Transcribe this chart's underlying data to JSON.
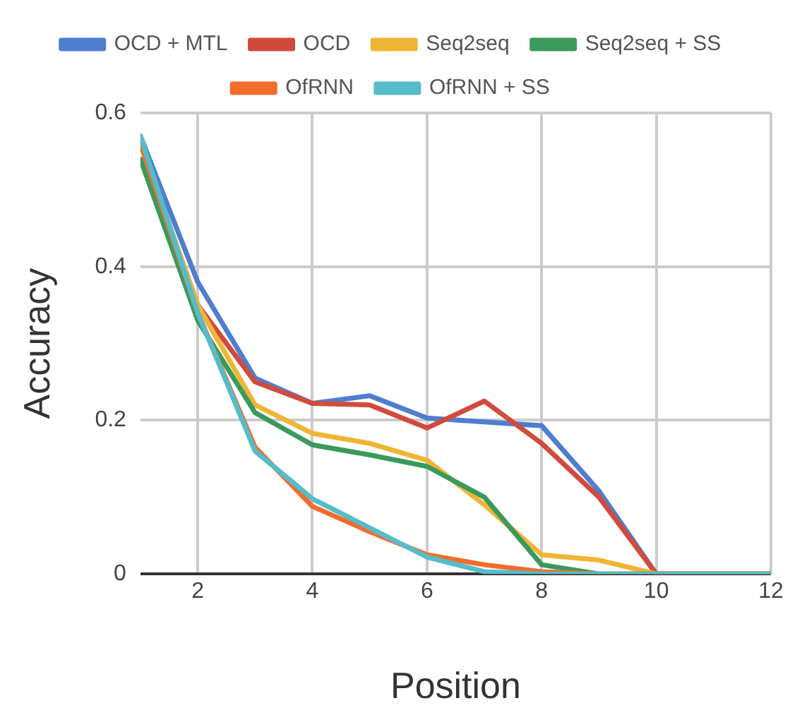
{
  "chart_data": {
    "type": "line",
    "xlabel": "Position",
    "ylabel": "Accuracy",
    "x": [
      1,
      2,
      3,
      4,
      5,
      6,
      7,
      8,
      9,
      10,
      11,
      12
    ],
    "series": [
      {
        "name": "OCD + MTL",
        "color": "#4f7ecf",
        "values": [
          0.57,
          0.38,
          0.255,
          0.222,
          0.232,
          0.203,
          0.198,
          0.193,
          0.108,
          0,
          0,
          0
        ]
      },
      {
        "name": "OCD",
        "color": "#d14b3d",
        "values": [
          0.56,
          0.35,
          0.25,
          0.222,
          0.22,
          0.19,
          0.225,
          0.17,
          0.1,
          0,
          0,
          0
        ]
      },
      {
        "name": "Seq2seq",
        "color": "#f0b536",
        "values": [
          0.56,
          0.35,
          0.22,
          0.183,
          0.17,
          0.148,
          0.09,
          0.025,
          0.018,
          0,
          0,
          0
        ]
      },
      {
        "name": "Seq2seq + SS",
        "color": "#3a9a5b",
        "values": [
          0.54,
          0.33,
          0.21,
          0.168,
          0.155,
          0.14,
          0.1,
          0.012,
          0,
          0,
          0,
          0
        ]
      },
      {
        "name": "OfRNN",
        "color": "#f26d2b",
        "values": [
          0.56,
          0.34,
          0.165,
          0.088,
          0.055,
          0.025,
          0.012,
          0.003,
          0,
          0,
          0,
          0
        ]
      },
      {
        "name": "OfRNN + SS",
        "color": "#56bcc8",
        "values": [
          0.57,
          0.34,
          0.16,
          0.098,
          0.06,
          0.022,
          0.003,
          0,
          0,
          0,
          0,
          0
        ]
      }
    ],
    "xlim": [
      1,
      12
    ],
    "xticks": [
      2,
      4,
      6,
      8,
      10,
      12
    ],
    "ylim": [
      0,
      0.6
    ],
    "yticks": [
      0,
      0.2,
      0.4,
      0.6
    ],
    "grid": true,
    "legend": "top",
    "marker": "none",
    "line_style": "solid"
  }
}
